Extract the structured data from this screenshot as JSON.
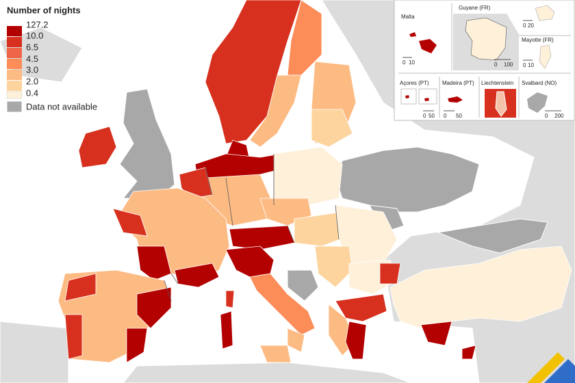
{
  "legend": {
    "title": "Number of nights",
    "classes": [
      "127.2",
      "10.0",
      "6.5",
      "4.5",
      "3.0",
      "2.0",
      "0.4"
    ],
    "not_available": "Data not available"
  },
  "insets": [
    {
      "name": "Malta",
      "scale": [
        "0",
        "10"
      ]
    },
    {
      "name": "Guyane (FR)",
      "scale": [
        "0",
        "100"
      ]
    },
    {
      "name": "",
      "scale": [
        "0",
        "20"
      ]
    },
    {
      "name": "Mayotte (FR)",
      "scale": [
        "0",
        "10"
      ]
    },
    {
      "name": "Açores (PT)",
      "scale": [
        "0",
        "50"
      ]
    },
    {
      "name": "Madeira (PT)",
      "scale": [
        "0",
        "50"
      ]
    },
    {
      "name": "Liechtenstein",
      "scale": []
    },
    {
      "name": "Svalbard (NO)",
      "scale": [
        "0",
        "200"
      ]
    }
  ]
}
